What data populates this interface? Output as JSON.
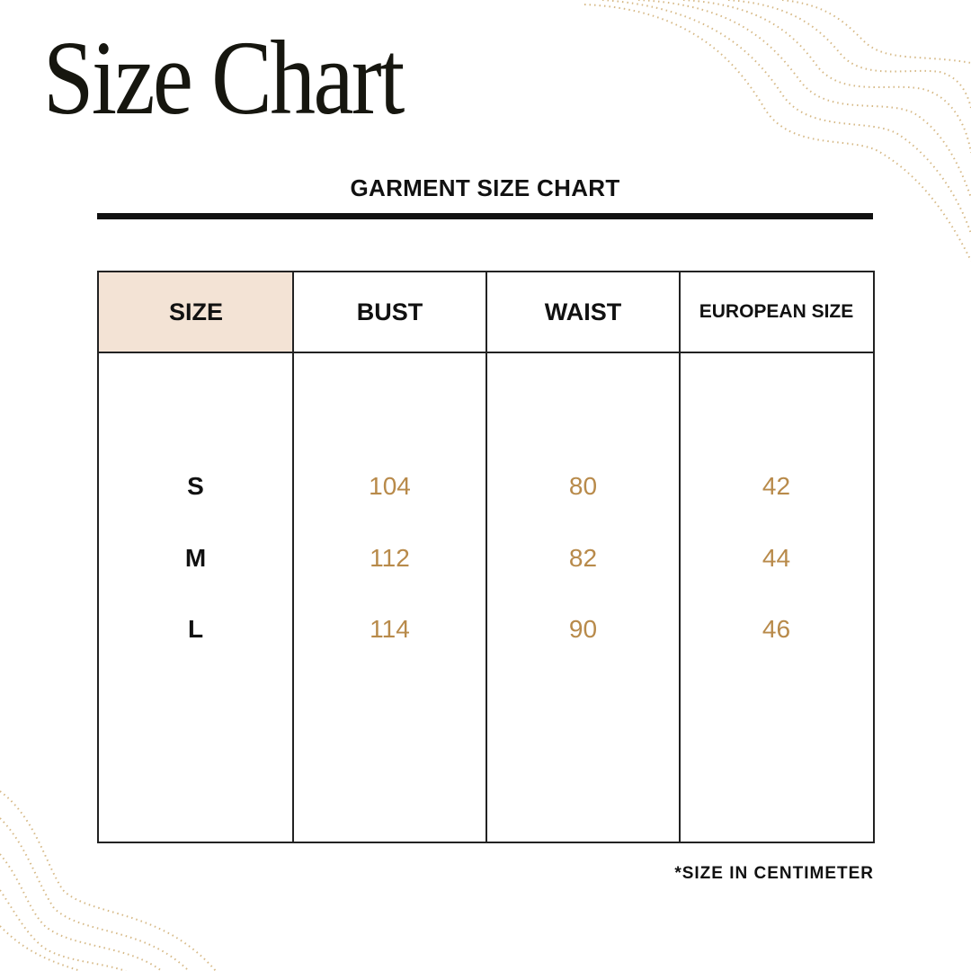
{
  "title": "Size Chart",
  "subtitle": "GARMENT SIZE CHART",
  "colors": {
    "header_bg": "#f3e3d5",
    "value_text": "#b88a4a",
    "decoration": "#c9a25e"
  },
  "table": {
    "headers": [
      "SIZE",
      "BUST",
      "WAIST",
      "EUROPEAN SIZE"
    ],
    "rows": [
      {
        "size": "S",
        "bust": "104",
        "waist": "80",
        "european": "42"
      },
      {
        "size": "M",
        "bust": "112",
        "waist": "82",
        "european": "44"
      },
      {
        "size": "L",
        "bust": "114",
        "waist": "90",
        "european": "46"
      }
    ]
  },
  "note": "*SIZE IN CENTIMETER"
}
